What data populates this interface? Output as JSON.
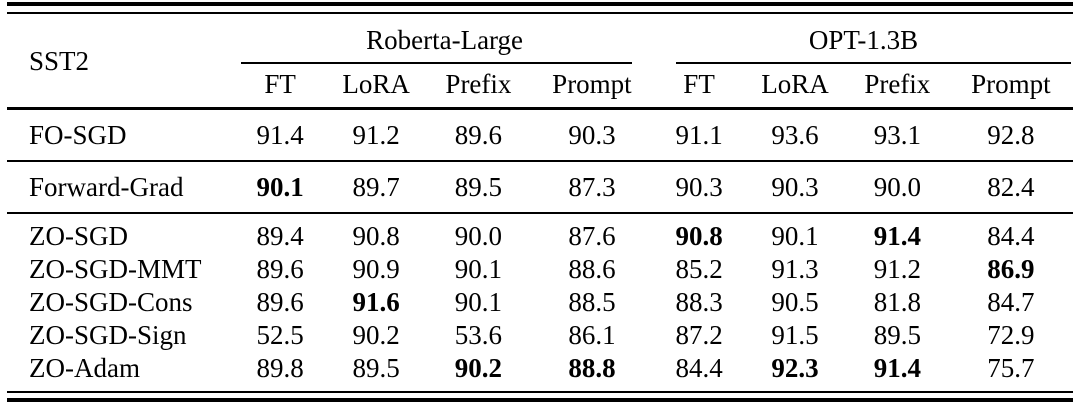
{
  "table": {
    "dataset_label": "SST2",
    "groups": [
      {
        "label": "Roberta-Large",
        "columns": [
          "FT",
          "LoRA",
          "Prefix",
          "Prompt"
        ]
      },
      {
        "label": "OPT-1.3B",
        "columns": [
          "FT",
          "LoRA",
          "Prefix",
          "Prompt"
        ]
      }
    ],
    "sections": [
      {
        "rows": [
          {
            "label": "FO-SGD",
            "values": [
              "91.4",
              "91.2",
              "89.6",
              "90.3",
              "91.1",
              "93.6",
              "93.1",
              "92.8"
            ],
            "bold": []
          }
        ]
      },
      {
        "rows": [
          {
            "label": "Forward-Grad",
            "values": [
              "90.1",
              "89.7",
              "89.5",
              "87.3",
              "90.3",
              "90.3",
              "90.0",
              "82.4"
            ],
            "bold": [
              0
            ]
          }
        ]
      },
      {
        "rows": [
          {
            "label": "ZO-SGD",
            "values": [
              "89.4",
              "90.8",
              "90.0",
              "87.6",
              "90.8",
              "90.1",
              "91.4",
              "84.4"
            ],
            "bold": [
              4,
              6
            ]
          },
          {
            "label": "ZO-SGD-MMT",
            "values": [
              "89.6",
              "90.9",
              "90.1",
              "88.6",
              "85.2",
              "91.3",
              "91.2",
              "86.9"
            ],
            "bold": [
              7
            ]
          },
          {
            "label": "ZO-SGD-Cons",
            "values": [
              "89.6",
              "91.6",
              "90.1",
              "88.5",
              "88.3",
              "90.5",
              "81.8",
              "84.7"
            ],
            "bold": [
              1
            ]
          },
          {
            "label": "ZO-SGD-Sign",
            "values": [
              "52.5",
              "90.2",
              "53.6",
              "86.1",
              "87.2",
              "91.5",
              "89.5",
              "72.9"
            ],
            "bold": []
          },
          {
            "label": "ZO-Adam",
            "values": [
              "89.8",
              "89.5",
              "90.2",
              "88.8",
              "84.4",
              "92.3",
              "91.4",
              "75.7"
            ],
            "bold": [
              2,
              3,
              5,
              6
            ]
          }
        ]
      }
    ]
  },
  "colors": {
    "text": "#000000",
    "background": "#ffffff",
    "rule": "#000000"
  }
}
